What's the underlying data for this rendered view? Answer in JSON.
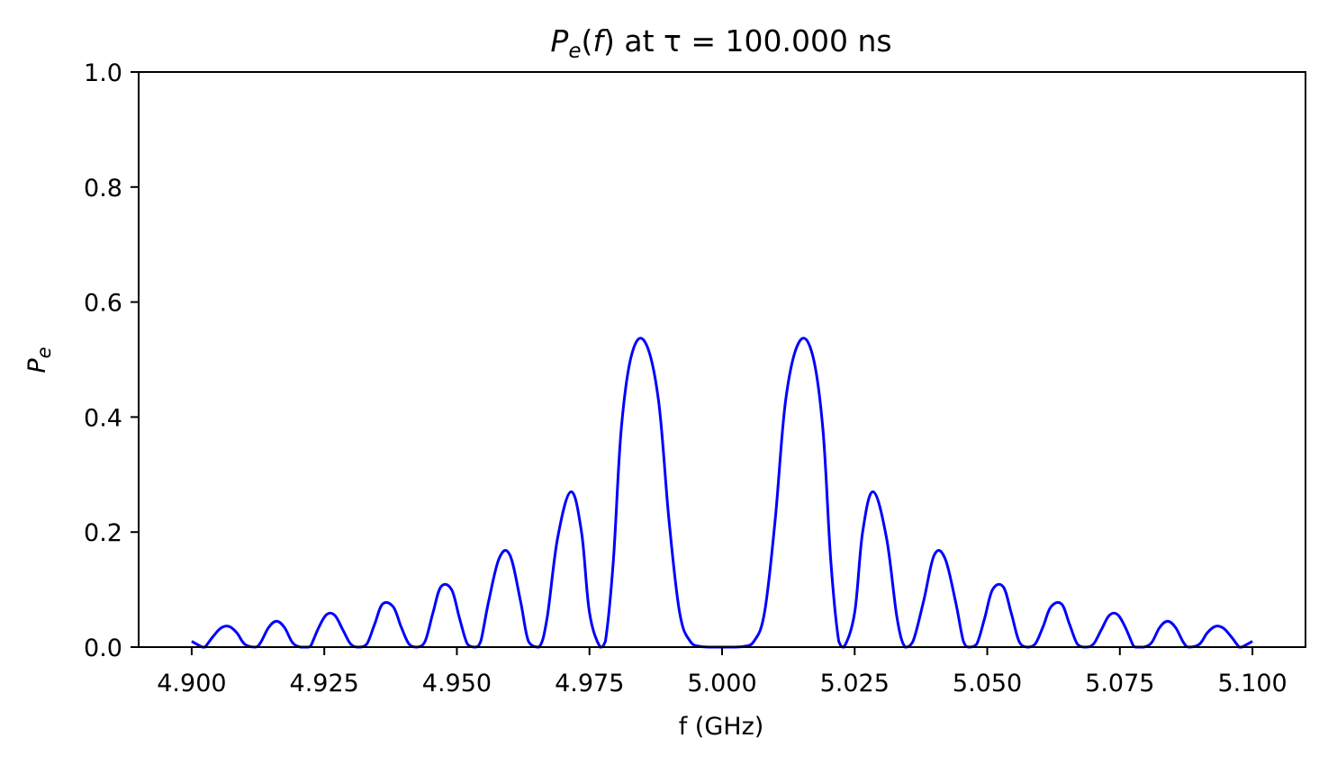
{
  "chart_data": {
    "type": "line",
    "title": {
      "p": "P",
      "sub": "e",
      "paren_open": "(",
      "f": "f",
      "paren_close": ")",
      "rest": " at τ = 100.000 ns"
    },
    "xlabel": "f (GHz)",
    "ylabel": {
      "p": "P",
      "sub": "e"
    },
    "xlim": [
      4.89,
      5.11
    ],
    "ylim": [
      0.0,
      1.0
    ],
    "x_ticks": [
      "4.900",
      "4.925",
      "4.950",
      "4.975",
      "5.000",
      "5.025",
      "5.050",
      "5.075",
      "5.100"
    ],
    "x_tick_values": [
      4.9,
      4.925,
      4.95,
      4.975,
      5.0,
      5.025,
      5.05,
      5.075,
      5.1
    ],
    "y_ticks": [
      "0.0",
      "0.2",
      "0.4",
      "0.6",
      "0.8",
      "1.0"
    ],
    "y_tick_values": [
      0.0,
      0.2,
      0.4,
      0.6,
      0.8,
      1.0
    ],
    "grid": false,
    "series": [
      {
        "color": "#0000ff",
        "x": [
          4.9,
          4.902,
          4.9025,
          4.904,
          4.9055,
          4.907,
          4.9085,
          4.91,
          4.912,
          4.913,
          4.9145,
          4.916,
          4.9175,
          4.919,
          4.9205,
          4.922,
          4.9225,
          4.924,
          4.9255,
          4.927,
          4.9285,
          4.93,
          4.9315,
          4.933,
          4.9345,
          4.936,
          4.938,
          4.9395,
          4.941,
          4.9425,
          4.944,
          4.9455,
          4.947,
          4.949,
          4.9505,
          4.952,
          4.9535,
          4.9545,
          4.956,
          4.958,
          4.96,
          4.962,
          4.9635,
          4.9655,
          4.967,
          4.969,
          4.9715,
          4.9735,
          4.975,
          4.977,
          4.978,
          4.9795,
          4.981,
          4.983,
          4.9855,
          4.988,
          4.99,
          4.992,
          4.994,
          4.996,
          4.998,
          5.0,
          5.002,
          5.004,
          5.006,
          5.008,
          5.01,
          5.012,
          5.0145,
          5.017,
          5.019,
          5.0205,
          5.022,
          5.023,
          5.025,
          5.0265,
          5.0285,
          5.031,
          5.033,
          5.0345,
          5.036,
          5.038,
          5.04,
          5.042,
          5.044,
          5.0455,
          5.0465,
          5.048,
          5.0495,
          5.051,
          5.053,
          5.0545,
          5.056,
          5.0575,
          5.059,
          5.0605,
          5.062,
          5.064,
          5.0655,
          5.067,
          5.0685,
          5.07,
          5.0715,
          5.073,
          5.0745,
          5.076,
          5.0775,
          5.078,
          5.0795,
          5.081,
          5.0825,
          5.084,
          5.0855,
          5.087,
          5.088,
          5.09,
          5.0915,
          5.093,
          5.0945,
          5.096,
          5.0975,
          5.098,
          5.1
        ],
        "y": [
          0.01,
          0.0,
          0.0,
          0.018,
          0.033,
          0.036,
          0.025,
          0.005,
          0.0,
          0.008,
          0.034,
          0.045,
          0.034,
          0.008,
          0.0,
          0.0,
          0.003,
          0.035,
          0.057,
          0.055,
          0.03,
          0.005,
          0.0,
          0.005,
          0.04,
          0.075,
          0.07,
          0.035,
          0.005,
          0.0,
          0.01,
          0.06,
          0.105,
          0.1,
          0.05,
          0.005,
          0.0,
          0.01,
          0.08,
          0.155,
          0.16,
          0.08,
          0.01,
          0.0,
          0.05,
          0.19,
          0.27,
          0.2,
          0.06,
          0.0,
          0.01,
          0.15,
          0.38,
          0.51,
          0.53,
          0.43,
          0.22,
          0.06,
          0.01,
          0.001,
          0.0,
          0.0,
          0.0,
          0.001,
          0.01,
          0.06,
          0.22,
          0.43,
          0.53,
          0.51,
          0.38,
          0.15,
          0.01,
          0.0,
          0.06,
          0.2,
          0.27,
          0.19,
          0.05,
          0.0,
          0.01,
          0.08,
          0.16,
          0.155,
          0.08,
          0.01,
          0.0,
          0.005,
          0.05,
          0.1,
          0.105,
          0.06,
          0.01,
          0.0,
          0.005,
          0.035,
          0.07,
          0.075,
          0.04,
          0.005,
          0.0,
          0.005,
          0.03,
          0.055,
          0.057,
          0.035,
          0.003,
          0.0,
          0.0,
          0.008,
          0.034,
          0.045,
          0.034,
          0.008,
          0.0,
          0.005,
          0.025,
          0.036,
          0.033,
          0.018,
          0.0,
          0.0,
          0.01
        ]
      }
    ]
  }
}
